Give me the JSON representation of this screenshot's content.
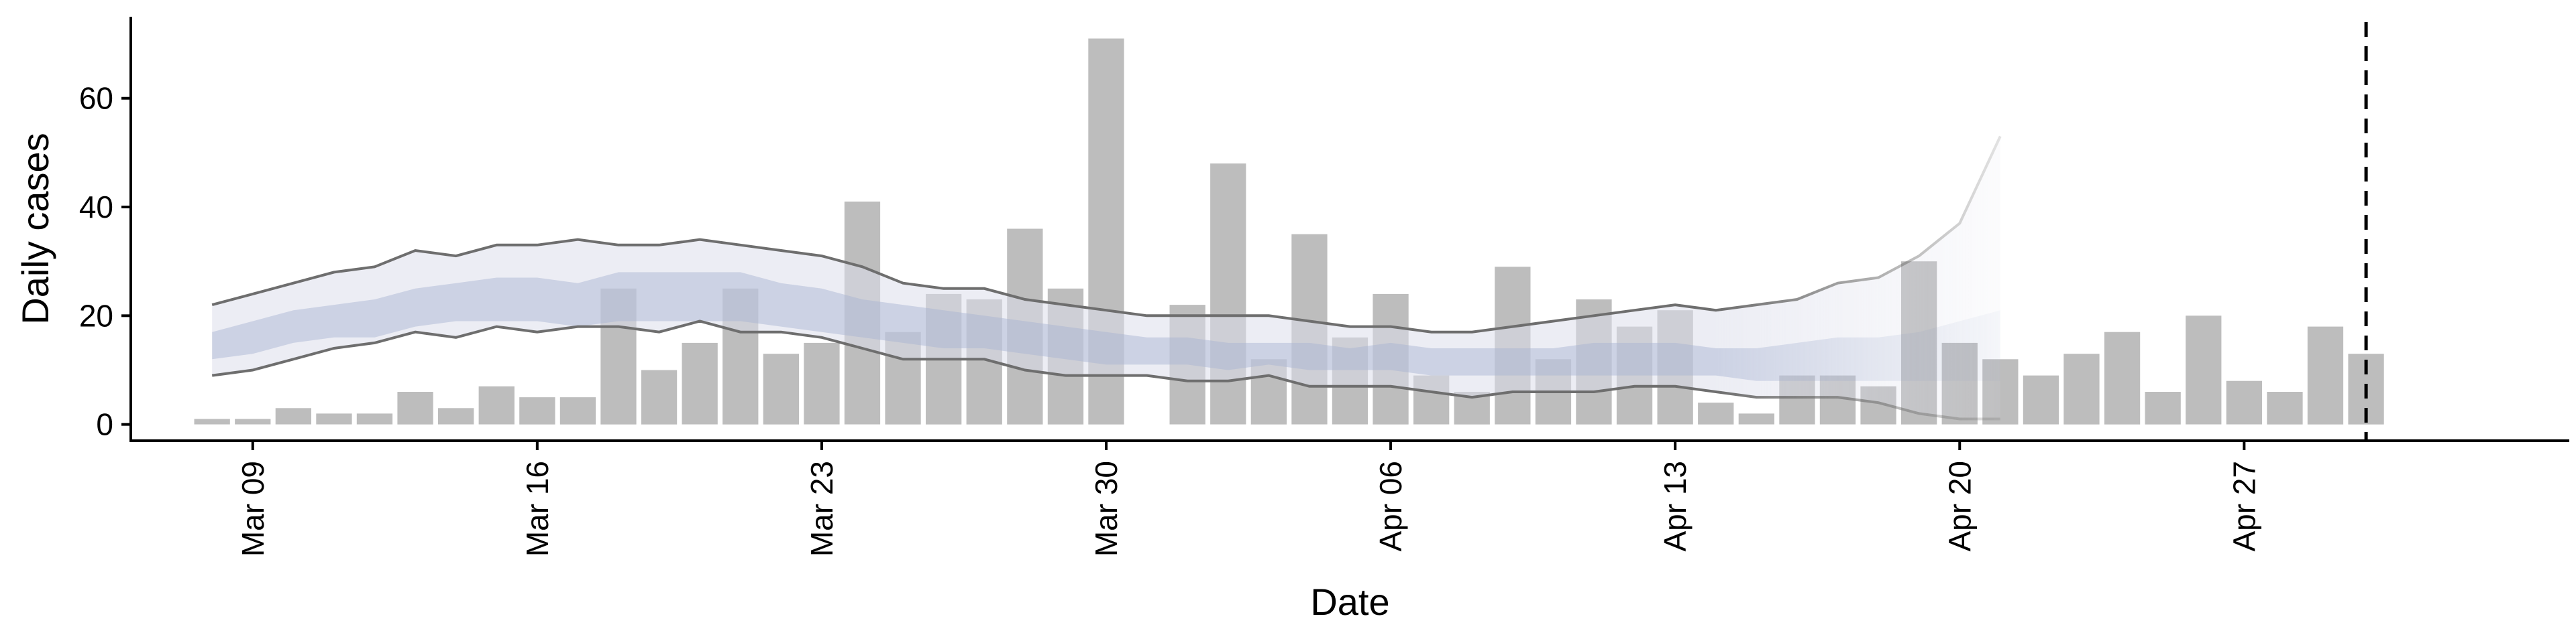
{
  "chart_data": {
    "type": "bar",
    "xlabel": "Date",
    "ylabel": "Daily cases",
    "ylim": [
      -3,
      75
    ],
    "yticks": [
      0,
      20,
      40,
      60
    ],
    "x_range": [
      "2020-03-06",
      "2020-05-05"
    ],
    "xticks": [
      {
        "date": "2020-03-09",
        "label": "Mar 09"
      },
      {
        "date": "2020-03-16",
        "label": "Mar 16"
      },
      {
        "date": "2020-03-23",
        "label": "Mar 23"
      },
      {
        "date": "2020-03-30",
        "label": "Mar 30"
      },
      {
        "date": "2020-04-06",
        "label": "Apr 06"
      },
      {
        "date": "2020-04-13",
        "label": "Apr 13"
      },
      {
        "date": "2020-04-20",
        "label": "Apr 20"
      },
      {
        "date": "2020-04-27",
        "label": "Apr 27"
      }
    ],
    "dates": [
      "2020-03-08",
      "2020-03-09",
      "2020-03-10",
      "2020-03-11",
      "2020-03-12",
      "2020-03-13",
      "2020-03-14",
      "2020-03-15",
      "2020-03-16",
      "2020-03-17",
      "2020-03-18",
      "2020-03-19",
      "2020-03-20",
      "2020-03-21",
      "2020-03-22",
      "2020-03-23",
      "2020-03-24",
      "2020-03-25",
      "2020-03-26",
      "2020-03-27",
      "2020-03-28",
      "2020-03-29",
      "2020-03-30",
      "2020-03-31",
      "2020-04-01",
      "2020-04-02",
      "2020-04-03",
      "2020-04-04",
      "2020-04-05",
      "2020-04-06",
      "2020-04-07",
      "2020-04-08",
      "2020-04-09",
      "2020-04-10",
      "2020-04-11",
      "2020-04-12",
      "2020-04-13",
      "2020-04-14",
      "2020-04-15",
      "2020-04-16",
      "2020-04-17",
      "2020-04-18",
      "2020-04-19",
      "2020-04-20",
      "2020-04-21",
      "2020-04-22",
      "2020-04-23",
      "2020-04-24",
      "2020-04-25",
      "2020-04-26",
      "2020-04-27",
      "2020-04-28",
      "2020-04-29",
      "2020-04-30"
    ],
    "values": [
      1,
      1,
      3,
      2,
      2,
      6,
      3,
      7,
      5,
      5,
      25,
      10,
      15,
      25,
      13,
      15,
      41,
      17,
      24,
      23,
      36,
      25,
      71,
      0,
      22,
      48,
      12,
      35,
      16,
      24,
      9,
      6,
      29,
      12,
      23,
      18,
      21,
      4,
      2,
      9,
      9,
      7,
      30,
      15,
      12,
      9,
      13,
      17,
      6,
      20,
      8,
      6,
      18,
      13
    ],
    "band_dates": [
      "2020-03-08",
      "2020-03-09",
      "2020-03-10",
      "2020-03-11",
      "2020-03-12",
      "2020-03-13",
      "2020-03-14",
      "2020-03-15",
      "2020-03-16",
      "2020-03-17",
      "2020-03-18",
      "2020-03-19",
      "2020-03-20",
      "2020-03-21",
      "2020-03-22",
      "2020-03-23",
      "2020-03-24",
      "2020-03-25",
      "2020-03-26",
      "2020-03-27",
      "2020-03-28",
      "2020-03-29",
      "2020-03-30",
      "2020-03-31",
      "2020-04-01",
      "2020-04-02",
      "2020-04-03",
      "2020-04-04",
      "2020-04-05",
      "2020-04-06",
      "2020-04-07",
      "2020-04-08",
      "2020-04-09",
      "2020-04-10",
      "2020-04-11",
      "2020-04-12",
      "2020-04-13",
      "2020-04-14",
      "2020-04-15",
      "2020-04-16",
      "2020-04-17",
      "2020-04-18",
      "2020-04-19",
      "2020-04-20",
      "2020-04-21"
    ],
    "outer_upper": [
      22,
      24,
      26,
      28,
      29,
      32,
      31,
      33,
      33,
      34,
      33,
      33,
      34,
      33,
      32,
      31,
      29,
      26,
      25,
      25,
      23,
      22,
      21,
      20,
      20,
      20,
      20,
      19,
      18,
      18,
      17,
      17,
      18,
      19,
      20,
      21,
      22,
      21,
      22,
      23,
      26,
      27,
      31,
      37,
      53
    ],
    "outer_lower": [
      9,
      10,
      12,
      14,
      15,
      17,
      16,
      18,
      17,
      18,
      18,
      17,
      19,
      17,
      17,
      16,
      14,
      12,
      12,
      12,
      10,
      9,
      9,
      9,
      8,
      8,
      9,
      7,
      7,
      7,
      6,
      5,
      6,
      6,
      6,
      7,
      7,
      6,
      5,
      5,
      5,
      4,
      2,
      1,
      1
    ],
    "inner_upper": [
      17,
      19,
      21,
      22,
      23,
      25,
      26,
      27,
      27,
      26,
      28,
      28,
      28,
      28,
      26,
      25,
      23,
      22,
      21,
      20,
      19,
      18,
      17,
      16,
      16,
      15,
      15,
      15,
      14,
      15,
      14,
      14,
      14,
      14,
      15,
      15,
      15,
      14,
      14,
      15,
      16,
      16,
      17,
      19,
      21
    ],
    "inner_lower": [
      12,
      13,
      15,
      16,
      16,
      18,
      19,
      19,
      19,
      18,
      19,
      19,
      19,
      19,
      18,
      17,
      16,
      15,
      14,
      14,
      13,
      12,
      11,
      11,
      11,
      10,
      11,
      10,
      10,
      10,
      9,
      9,
      9,
      9,
      9,
      9,
      9,
      9,
      8,
      8,
      8,
      8,
      8,
      8,
      8
    ],
    "bands_fade_from": "2020-04-14",
    "vline_date": "2020-04-30",
    "colors": {
      "bars": "#bdbdbd",
      "band_outer": "#dcdfeb",
      "band_inner": "#a6b2d0",
      "bound_lines": "#6e6e6e",
      "vline": "#000000"
    }
  }
}
